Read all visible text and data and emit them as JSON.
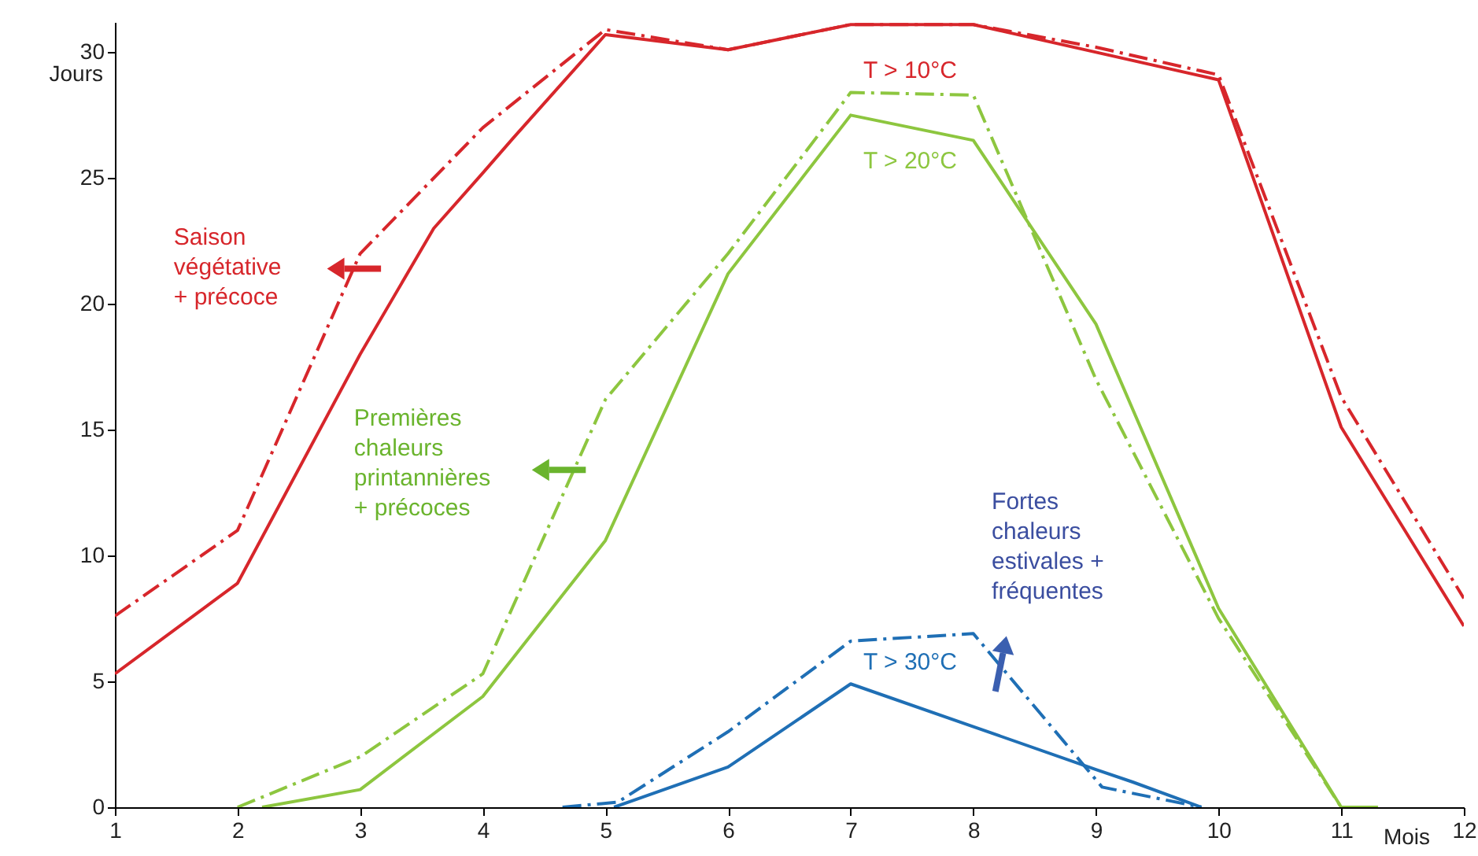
{
  "chart_data": {
    "type": "line",
    "xlabel": "Mois",
    "ylabel": "Jours",
    "xlim": [
      1,
      12
    ],
    "xticks": [
      1,
      2,
      3,
      4,
      5,
      6,
      7,
      8,
      9,
      10,
      11,
      12
    ],
    "ylim": [
      0,
      31.2
    ],
    "yticks": [
      0,
      5,
      10,
      15,
      20,
      25,
      30
    ],
    "grid": false,
    "legend": false,
    "marker": "none",
    "series": [
      {
        "name": "T > 10°C",
        "color": "#d7262b",
        "line_style": "solid",
        "x": [
          1,
          2,
          3,
          3.6,
          4,
          4.25,
          5,
          6,
          7,
          8,
          9,
          10,
          11,
          12
        ],
        "values": [
          5.3,
          8.9,
          18,
          23,
          25.2,
          26.6,
          30.7,
          30.1,
          31.1,
          31.1,
          30,
          28.9,
          15.1,
          7.2
        ]
      },
      {
        "color": "#d7262b",
        "line_style": "dashed",
        "x": [
          1,
          2,
          3,
          4,
          5,
          6,
          7,
          8,
          9,
          10,
          11,
          12
        ],
        "values": [
          7.6,
          11,
          22,
          27,
          30.9,
          30.1,
          31.1,
          31.1,
          30.2,
          29.1,
          16.3,
          8.3
        ]
      },
      {
        "name": "T > 20°C",
        "color": "#8dc63f",
        "line_style": "solid",
        "x": [
          2.2,
          3,
          4,
          5,
          6,
          7,
          8,
          9,
          10,
          11,
          11.3
        ],
        "values": [
          0,
          0.7,
          4.4,
          10.6,
          21.2,
          27.5,
          26.5,
          19.2,
          7.9,
          0,
          0
        ]
      },
      {
        "color": "#8dc63f",
        "line_style": "dashed",
        "x": [
          2,
          3,
          4,
          5,
          6,
          7,
          8,
          9,
          10,
          11
        ],
        "values": [
          0,
          2,
          5.3,
          16.2,
          22,
          28.4,
          28.3,
          17,
          7.5,
          0
        ]
      },
      {
        "name": "T > 30°C",
        "color": "#1f6fb5",
        "line_style": "solid",
        "x": [
          5.07,
          6,
          7,
          8,
          9,
          9.3,
          9.86
        ],
        "values": [
          0,
          1.6,
          4.9,
          3.2,
          1.5,
          1,
          0
        ]
      },
      {
        "color": "#1f6fb5",
        "line_style": "dashed",
        "x": [
          4.65,
          5.1,
          6,
          7,
          8,
          9.05,
          9.86
        ],
        "values": [
          0,
          0.2,
          3,
          6.6,
          6.9,
          0.8,
          0
        ]
      }
    ],
    "annotations": [
      "Saison\nvégétative\n+ précoce",
      "Premières\nchaleurs\nprintannières\n+ précoces",
      "Fortes\nchaleurs\nestivales +\nfréquentes"
    ]
  }
}
